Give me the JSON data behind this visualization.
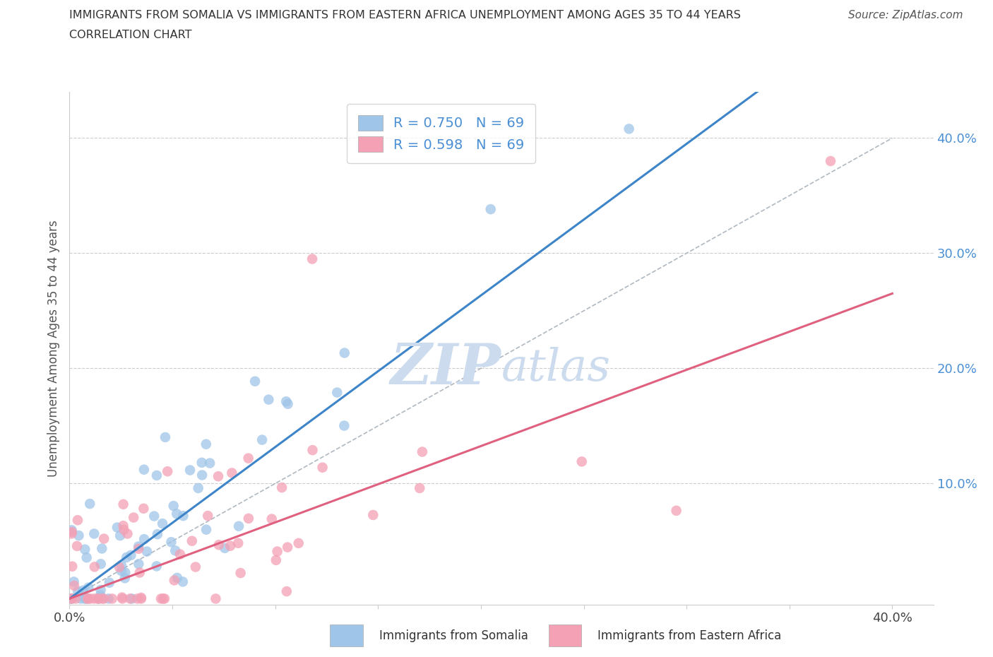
{
  "title_line1": "IMMIGRANTS FROM SOMALIA VS IMMIGRANTS FROM EASTERN AFRICA UNEMPLOYMENT AMONG AGES 35 TO 44 YEARS",
  "title_line2": "CORRELATION CHART",
  "source_text": "Source: ZipAtlas.com",
  "ylabel": "Unemployment Among Ages 35 to 44 years",
  "xlim": [
    0.0,
    0.42
  ],
  "ylim": [
    -0.005,
    0.44
  ],
  "ytick_positions": [
    0.0,
    0.1,
    0.2,
    0.3,
    0.4
  ],
  "ytick_labels_right": [
    "",
    "10.0%",
    "20.0%",
    "30.0%",
    "40.0%"
  ],
  "somalia_color": "#9fc5e8",
  "eastern_color": "#f4a0b5",
  "somalia_line_color": "#3d85c8",
  "eastern_line_color": "#e06080",
  "ref_line_color": "#b0b8c0",
  "watermark_color": "#ccdcee",
  "legend_R1": "R = 0.750",
  "legend_N1": "N = 69",
  "legend_R2": "R = 0.598",
  "legend_N2": "N = 69",
  "legend_text_color": "#4a8fd4",
  "background_color": "#ffffff",
  "grid_color": "#cccccc",
  "axis_color": "#cccccc",
  "somalia_line_x0": 0.0,
  "somalia_line_y0": 0.0,
  "somalia_line_x1": 0.3,
  "somalia_line_y1": 0.395,
  "eastern_line_x0": 0.0,
  "eastern_line_y0": 0.0,
  "eastern_line_x1": 0.4,
  "eastern_line_y1": 0.265
}
